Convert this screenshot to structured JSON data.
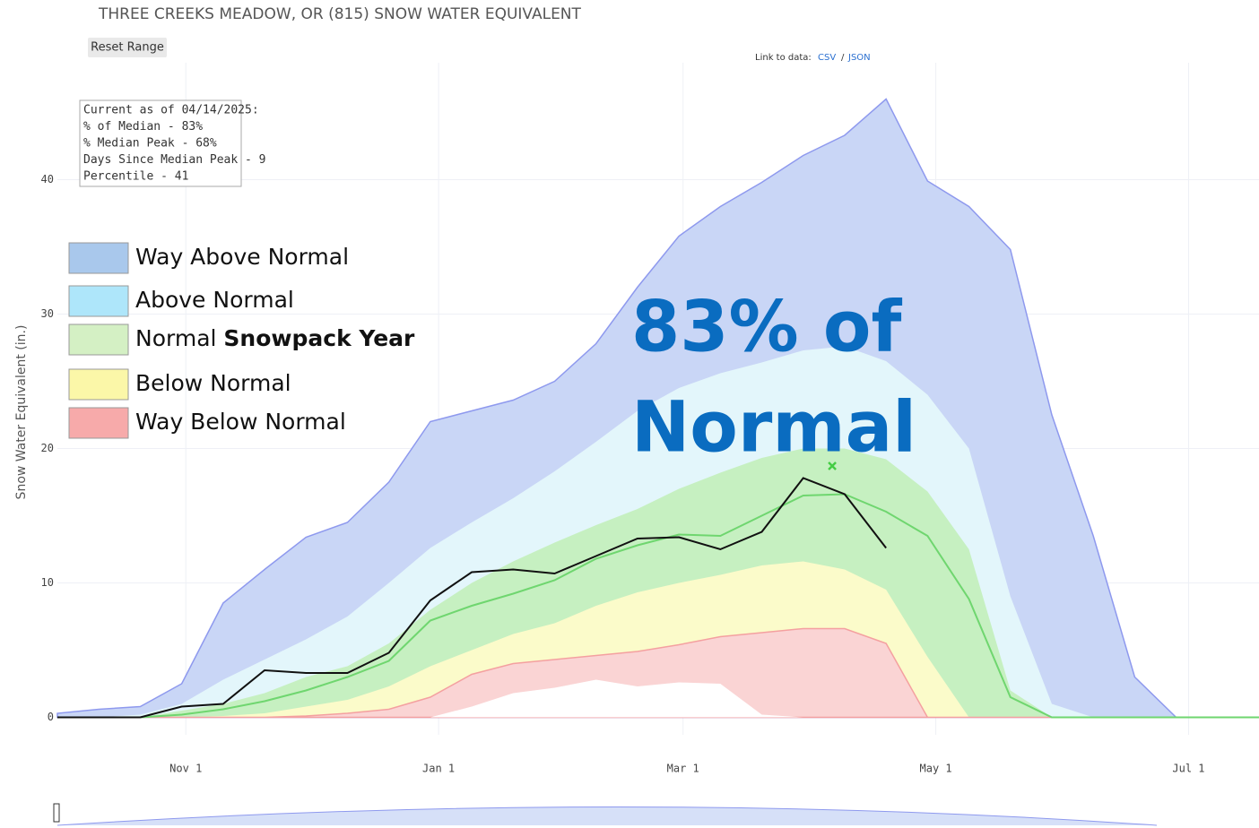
{
  "chart_data": {
    "type": "area",
    "title": "THREE CREEKS MEADOW, OR (815) SNOW WATER EQUIVALENT",
    "reset_button": "Reset Range",
    "data_link": {
      "prefix": "Link to data:",
      "links": [
        "CSV",
        "JSON"
      ],
      "separator": "/"
    },
    "y_label": "Snow Water Equivalent (in.)",
    "info_box": [
      "Current as of 04/14/2025:",
      "% of Median - 83%",
      "% Median Peak - 68%",
      "Days Since Median Peak - 9",
      "Percentile - 41"
    ],
    "legend_overlay": [
      {
        "text": "Way Above Normal",
        "color": "#a9c8ec"
      },
      {
        "text": "Above Normal",
        "color": "#aee6fa"
      },
      {
        "text": "Normal",
        "bold": "Snowpack Year",
        "color": "#d4f0c4"
      },
      {
        "text": "Below Normal",
        "color": "#fbf7a8"
      },
      {
        "text": "Way Below Normal",
        "color": "#f7aaaa"
      }
    ],
    "annotation": {
      "lines": [
        "83% of",
        "Normal"
      ],
      "color": "#0a6cc0"
    },
    "x": [
      0,
      10,
      20,
      30,
      40,
      50,
      60,
      70,
      80,
      90,
      100,
      110,
      120,
      130,
      140,
      150,
      160,
      170,
      180,
      190,
      200,
      210,
      220,
      230,
      240,
      250,
      260,
      270,
      280,
      290
    ],
    "xlim": [
      0,
      290
    ],
    "xticks": [
      {
        "value": 31,
        "label": "Nov 1"
      },
      {
        "value": 92,
        "label": "Jan 1"
      },
      {
        "value": 151,
        "label": "Mar 1"
      },
      {
        "value": 212,
        "label": "May 1"
      },
      {
        "value": 273,
        "label": "Jul 1"
      }
    ],
    "ylim": [
      -1.3,
      48.7
    ],
    "yticks": [
      0,
      10,
      20,
      30,
      40
    ],
    "grid": true,
    "series": [
      {
        "kind": "area",
        "color": "#c9d6f6",
        "line_color": "#8e99ee",
        "values": [
          0.3,
          0.6,
          0.8,
          2.5,
          8.5,
          11,
          13.4,
          14.5,
          17.5,
          22,
          22.8,
          23.6,
          25,
          27.8,
          32,
          35.8,
          38,
          39.8,
          41.8,
          43.3,
          46,
          39.9,
          38,
          34.8,
          22.5,
          13.5,
          3,
          0,
          0,
          0
        ]
      },
      {
        "kind": "area",
        "color": "#e3f6fb",
        "values": [
          0,
          0,
          0.2,
          1,
          2.8,
          4.3,
          5.8,
          7.5,
          10,
          12.6,
          14.5,
          16.3,
          18.3,
          20.5,
          22.8,
          24.5,
          25.6,
          26.4,
          27.3,
          27.6,
          26.5,
          24,
          20,
          9,
          1,
          0,
          0,
          0,
          0,
          0
        ]
      },
      {
        "kind": "area",
        "color": "#c6f0c1",
        "values": [
          0,
          0,
          0,
          0.5,
          1,
          1.8,
          3,
          3.8,
          5.5,
          8,
          10,
          11.6,
          13,
          14.3,
          15.5,
          17,
          18.2,
          19.3,
          20,
          20,
          19.2,
          16.8,
          12.5,
          2,
          0,
          0,
          0,
          0,
          0,
          0
        ]
      },
      {
        "kind": "area",
        "color": "#fbfbca",
        "values": [
          0,
          0,
          0,
          0,
          0.1,
          0.3,
          0.8,
          1.3,
          2.3,
          3.8,
          5,
          6.2,
          7,
          8.3,
          9.3,
          10,
          10.6,
          11.3,
          11.6,
          11,
          9.5,
          4.5,
          0,
          0,
          0,
          0,
          0,
          0,
          0,
          0
        ]
      },
      {
        "kind": "area",
        "color": "#fad4d4",
        "line_color": "#f4a0a0",
        "values": [
          0,
          0,
          0,
          0,
          0,
          0,
          0.1,
          0.3,
          0.6,
          1.5,
          3.2,
          4,
          4.3,
          4.6,
          4.9,
          5.4,
          6,
          6.3,
          6.6,
          6.6,
          5.5,
          0,
          0,
          0,
          0,
          0,
          0,
          0,
          0,
          0
        ]
      },
      {
        "kind": "area",
        "color": "#ffffff",
        "values": [
          0,
          0,
          0,
          0,
          0,
          0,
          0,
          0,
          0,
          0,
          0.8,
          1.8,
          2.2,
          2.8,
          2.3,
          2.6,
          2.5,
          0.2,
          0,
          0,
          0,
          0,
          0,
          0,
          0,
          0,
          0,
          0,
          0,
          0
        ]
      },
      {
        "kind": "line",
        "color": "#6fd66f",
        "values": [
          0,
          0,
          0,
          0.2,
          0.6,
          1.2,
          2,
          3,
          4.2,
          7.2,
          8.3,
          9.2,
          10.2,
          11.8,
          12.8,
          13.6,
          13.5,
          15,
          16.5,
          16.6,
          15.3,
          13.5,
          8.8,
          1.5,
          0,
          0,
          0,
          0,
          0,
          0
        ]
      },
      {
        "kind": "line",
        "color": "#111111",
        "values": [
          0,
          0,
          0,
          0.8,
          1,
          3.5,
          3.3,
          3.3,
          4.8,
          8.7,
          10.8,
          11,
          10.7,
          12,
          13.3,
          13.4,
          12.5,
          13.8,
          17.8,
          16.6,
          12.6,
          null,
          null,
          null,
          null,
          null,
          null,
          null,
          null,
          null
        ]
      }
    ],
    "peak_marker": {
      "x": 187,
      "y": 18.7,
      "color": "#44cc44"
    }
  }
}
